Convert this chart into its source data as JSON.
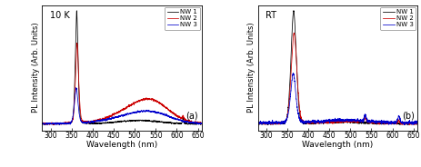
{
  "title_a": "10 K",
  "title_b": "RT",
  "xlabel": "Wavelength (nm)",
  "ylabel": "PL Intensity (Arb. Units)",
  "legend_labels": [
    "NW 1",
    "NW 2",
    "NW 3"
  ],
  "colors": [
    "#000000",
    "#cc0000",
    "#0000cc"
  ],
  "xlim": [
    280,
    660
  ],
  "xticks": [
    300,
    350,
    400,
    450,
    500,
    550,
    600,
    650
  ],
  "label_a": "(a)",
  "label_b": "(b)",
  "bg_color": "#ffffff"
}
